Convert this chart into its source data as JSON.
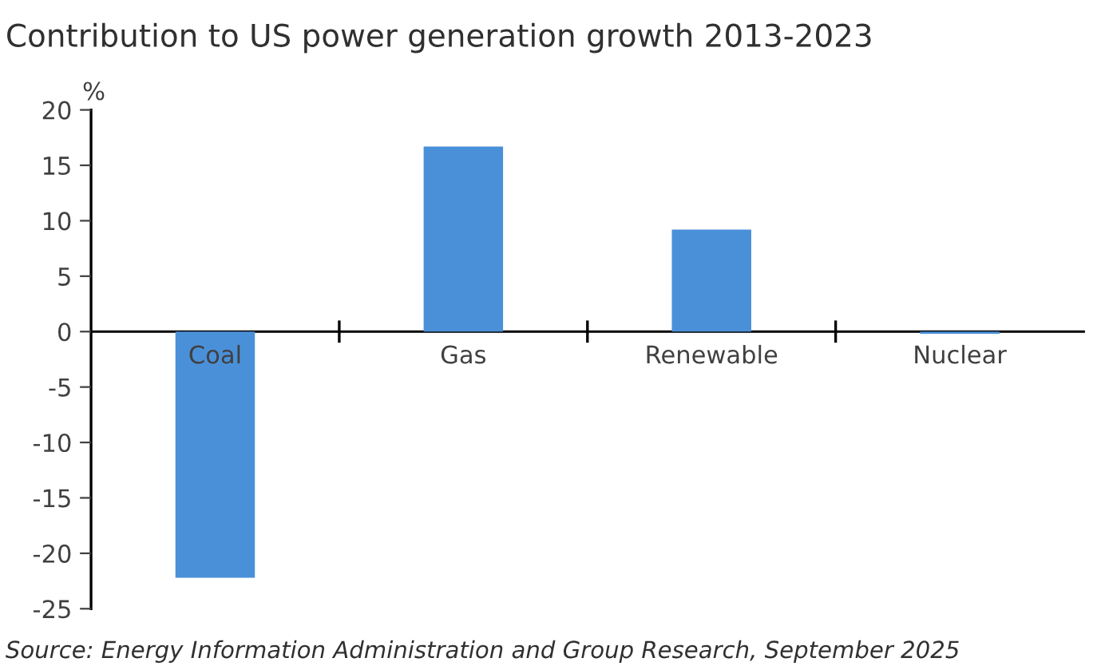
{
  "chart_data": {
    "type": "bar",
    "title": "Contribution to US power generation growth 2013-2023",
    "ylabel": "%",
    "categories": [
      "Coal",
      "Gas",
      "Renewable",
      "Nuclear"
    ],
    "values": [
      -22.2,
      16.7,
      9.2,
      -0.2
    ],
    "color": "#4a90d9",
    "ylim": [
      -25,
      20
    ],
    "yticks": [
      -25,
      -20,
      -15,
      -10,
      -5,
      0,
      5,
      10,
      15,
      20
    ],
    "grid": false,
    "legend": false,
    "annotations": [
      "Source: Energy Information Administration and Group Research, September 2025"
    ]
  }
}
